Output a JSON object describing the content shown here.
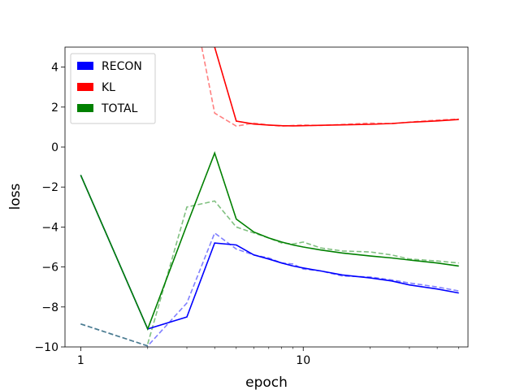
{
  "chart_data": {
    "type": "line",
    "xscale": "log",
    "xlabel": "epoch",
    "ylabel": "loss",
    "xlim": [
      0.85,
      55
    ],
    "ylim": [
      -10,
      5
    ],
    "xticks": [
      1,
      10
    ],
    "yticks": [
      -10,
      -8,
      -6,
      -4,
      -2,
      0,
      2,
      4
    ],
    "legend": {
      "placement": "top-left"
    },
    "series": [
      {
        "name": "RECON",
        "color": "#0000ff",
        "style": "solid",
        "x": [
          1,
          2,
          3,
          4,
          5,
          6,
          7,
          8,
          9,
          10,
          12,
          15,
          20,
          25,
          30,
          40,
          50
        ],
        "y": [
          -1.4,
          -9.1,
          -8.5,
          -4.8,
          -4.9,
          -5.4,
          -5.6,
          -5.8,
          -5.95,
          -6.05,
          -6.2,
          -6.4,
          -6.55,
          -6.7,
          -6.9,
          -7.1,
          -7.3
        ]
      },
      {
        "name": "KL",
        "color": "#ff0000",
        "style": "solid",
        "x": [
          4,
          5,
          6,
          7,
          8,
          9,
          10,
          12,
          15,
          20,
          25,
          30,
          40,
          50
        ],
        "y": [
          5.0,
          1.3,
          1.15,
          1.1,
          1.07,
          1.06,
          1.07,
          1.09,
          1.11,
          1.14,
          1.18,
          1.24,
          1.31,
          1.38
        ]
      },
      {
        "name": "TOTAL",
        "color": "#008000",
        "style": "solid",
        "x": [
          1,
          2,
          3,
          4,
          5,
          6,
          7,
          8,
          9,
          10,
          12,
          15,
          20,
          25,
          30,
          40,
          50
        ],
        "y": [
          -1.4,
          -9.1,
          -3.9,
          -0.3,
          -3.6,
          -4.25,
          -4.55,
          -4.75,
          -4.9,
          -5.0,
          -5.15,
          -5.3,
          -5.45,
          -5.55,
          -5.65,
          -5.8,
          -5.95
        ]
      },
      {
        "name": "",
        "color": "#ff8080",
        "style": "dashed",
        "x": [
          3.5,
          4,
          5,
          6,
          7,
          8,
          9,
          10,
          12,
          15,
          20,
          25,
          30,
          40,
          50
        ],
        "y": [
          5.0,
          1.7,
          1.05,
          1.2,
          1.1,
          1.05,
          1.08,
          1.1,
          1.08,
          1.13,
          1.2,
          1.17,
          1.25,
          1.35,
          1.4
        ]
      },
      {
        "name": "",
        "color": "#8080ff",
        "style": "dashed",
        "x": [
          1,
          2,
          3,
          4,
          5,
          6,
          7,
          8,
          9,
          10,
          12,
          15,
          20,
          25,
          30,
          40,
          50
        ],
        "y": [
          -8.85,
          -9.95,
          -7.8,
          -4.3,
          -5.1,
          -5.4,
          -5.55,
          -5.8,
          -5.85,
          -6.1,
          -6.2,
          -6.45,
          -6.5,
          -6.65,
          -6.8,
          -7.0,
          -7.2
        ]
      },
      {
        "name": "",
        "color": "#80c080",
        "style": "dashed",
        "x": [
          2,
          3,
          4,
          5,
          6,
          7,
          8,
          9,
          10,
          12,
          15,
          20,
          25,
          30,
          40,
          50
        ],
        "y": [
          -9.85,
          -3.0,
          -2.7,
          -4.0,
          -4.3,
          -4.55,
          -4.8,
          -4.85,
          -4.75,
          -5.05,
          -5.2,
          -5.25,
          -5.4,
          -5.6,
          -5.7,
          -5.8
        ]
      },
      {
        "name": "",
        "color": "#4a7f8a",
        "style": "dashed",
        "x": [
          1,
          2
        ],
        "y": [
          -8.85,
          -9.95
        ]
      }
    ]
  }
}
